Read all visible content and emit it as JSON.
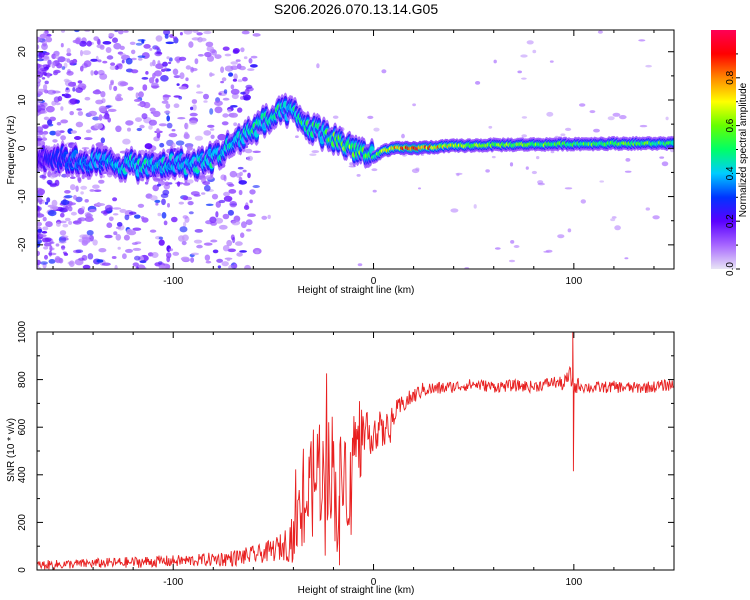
{
  "page": {
    "title": "S206.2026.070.13.14.G05"
  },
  "chart_data": [
    {
      "type": "heatmap",
      "title": "S206.2026.070.13.14.G05",
      "xlabel": "Height of straight line (km)",
      "ylabel": "Frequency (Hz)",
      "xlim": [
        -168,
        150
      ],
      "ylim": [
        -25,
        24.5
      ],
      "xticks": [
        "-100",
        "0",
        "100"
      ],
      "xtick_values": [
        -100,
        0,
        100
      ],
      "yticks": [
        "20",
        "10",
        "0",
        "-10",
        "-20"
      ],
      "ytick_values": [
        20,
        10,
        0,
        -10,
        -20
      ],
      "colorbar": {
        "label": "Normalized spectral amplitude",
        "range": [
          0,
          1
        ],
        "ticks": [
          "0.0",
          "0.2",
          "0.4",
          "0.6",
          "0.8"
        ],
        "tick_values": [
          0,
          0.2,
          0.4,
          0.6,
          0.8
        ],
        "colors": [
          "#e8e4f5",
          "#a766ff",
          "#5a00ff",
          "#0033ff",
          "#00ccff",
          "#00ff66",
          "#66ff00",
          "#ffff00",
          "#ff8800",
          "#ff0000",
          "#ff0055"
        ]
      },
      "ridge": {
        "x": [
          -168,
          -150,
          -135,
          -120,
          -110,
          -100,
          -90,
          -80,
          -70,
          -60,
          -50,
          -42,
          -35,
          -25,
          -15,
          -5,
          0,
          5,
          10,
          20,
          40,
          60,
          80,
          100,
          120,
          150
        ],
        "y": [
          -1.5,
          -2.5,
          -3,
          -3.5,
          -4,
          -3,
          -3.5,
          -2,
          1,
          4,
          6.5,
          8,
          5,
          3,
          1,
          -1,
          -2,
          -0.5,
          0,
          0,
          0.5,
          0.7,
          0.8,
          0.9,
          1,
          1
        ],
        "amp": [
          0.2,
          0.35,
          0.4,
          0.45,
          0.45,
          0.4,
          0.45,
          0.45,
          0.45,
          0.5,
          0.5,
          0.45,
          0.5,
          0.5,
          0.65,
          0.6,
          0.55,
          0.7,
          0.8,
          0.95,
          0.7,
          0.6,
          0.6,
          0.55,
          0.6,
          0.55
        ]
      }
    },
    {
      "type": "line",
      "title": "",
      "xlabel": "Height of straight line (km)",
      "ylabel": "SNR (10 * v/v)",
      "xlim": [
        -168,
        150
      ],
      "ylim": [
        0,
        1000
      ],
      "xticks": [
        "-100",
        "0",
        "100"
      ],
      "xtick_values": [
        -100,
        0,
        100
      ],
      "yticks": [
        "0",
        "200",
        "400",
        "600",
        "800",
        "1000"
      ],
      "ytick_values": [
        0,
        200,
        400,
        600,
        800,
        1000
      ],
      "series": [
        {
          "name": "SNR",
          "color": "#e82020",
          "x": [
            -168,
            -150,
            -130,
            -110,
            -90,
            -70,
            -55,
            -45,
            -40,
            -36,
            -33,
            -30,
            -27,
            -24,
            -21,
            -18,
            -15,
            -12,
            -10,
            -7,
            -4,
            -1,
            2,
            5,
            8,
            11,
            15,
            20,
            25,
            30,
            40,
            50,
            60,
            70,
            80,
            90,
            95,
            98,
            100,
            102,
            105,
            110,
            120,
            130,
            140,
            150
          ],
          "y": [
            20,
            25,
            30,
            35,
            40,
            50,
            70,
            100,
            150,
            220,
            300,
            350,
            450,
            300,
            480,
            250,
            480,
            300,
            550,
            500,
            560,
            580,
            600,
            570,
            620,
            660,
            700,
            730,
            760,
            760,
            770,
            780,
            770,
            775,
            770,
            790,
            780,
            820,
            760,
            780,
            770,
            765,
            770,
            765,
            770,
            780
          ],
          "noise": [
            20,
            20,
            22,
            25,
            25,
            35,
            40,
            60,
            120,
            180,
            200,
            220,
            250,
            260,
            250,
            230,
            200,
            180,
            150,
            130,
            100,
            90,
            85,
            70,
            60,
            50,
            40,
            35,
            30,
            30,
            25,
            25,
            25,
            25,
            25,
            25,
            30,
            40,
            40,
            30,
            25,
            25,
            25,
            25,
            25,
            25
          ],
          "spikes": [
            {
              "x": -30,
              "y": 590
            },
            {
              "x": -27,
              "y": 600
            },
            {
              "x": -17,
              "y": 20
            },
            {
              "x": 99.5,
              "y": 1000
            },
            {
              "x": 99.8,
              "y": 415
            }
          ]
        }
      ]
    }
  ]
}
